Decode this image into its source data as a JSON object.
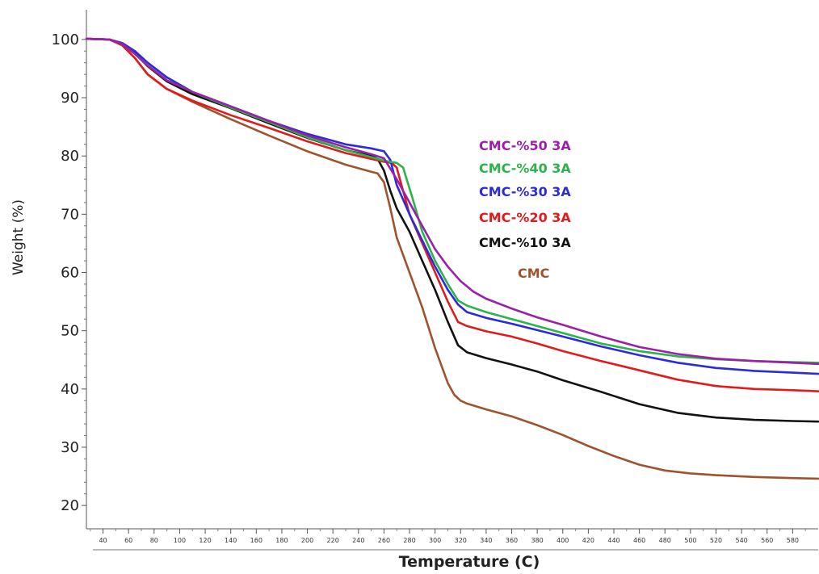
{
  "chart_data": {
    "type": "line",
    "xlabel": "Temperature (C)",
    "ylabel": "Weight (%)",
    "xlim": [
      27,
      600
    ],
    "ylim": [
      16,
      104
    ],
    "yticks": [
      20,
      30,
      40,
      50,
      60,
      70,
      80,
      90,
      100
    ],
    "xticks": [
      40,
      60,
      80,
      100,
      120,
      140,
      160,
      180,
      200,
      220,
      240,
      260,
      280,
      300,
      320,
      340,
      360,
      380,
      400,
      420,
      440,
      460,
      480,
      500,
      520,
      540,
      560,
      580
    ],
    "xtick_labels": [
      "40",
      "60",
      "80",
      "100",
      "120",
      "140",
      "160",
      "180",
      "200",
      "220",
      "240",
      "260",
      "280",
      "300",
      "320",
      "340",
      "360",
      "380",
      "400",
      "420",
      "440",
      "460",
      "480",
      "500",
      "520",
      "540",
      "560",
      "580"
    ],
    "grid": false,
    "legend_position": "center-right",
    "series": [
      {
        "name": "CMC-%50 3A",
        "color": "#9b1fa8",
        "x": [
          27,
          45,
          55,
          65,
          75,
          90,
          110,
          140,
          170,
          200,
          230,
          250,
          260,
          270,
          280,
          290,
          300,
          310,
          320,
          330,
          340,
          360,
          380,
          400,
          430,
          460,
          490,
          520,
          550,
          580,
          600
        ],
        "y": [
          100.1,
          100,
          99.2,
          97.5,
          95.5,
          93,
          91,
          88.5,
          86,
          83.5,
          81.5,
          80.3,
          79.6,
          76,
          72,
          68,
          64,
          61,
          58.5,
          56.7,
          55.5,
          53.8,
          52.3,
          51,
          49,
          47.2,
          46,
          45.2,
          44.8,
          44.5,
          44.3
        ]
      },
      {
        "name": "CMC-%40 3A",
        "color": "#2db34a",
        "x": [
          27,
          45,
          55,
          65,
          75,
          90,
          110,
          140,
          170,
          200,
          230,
          250,
          260,
          270,
          275,
          282,
          290,
          300,
          310,
          318,
          325,
          340,
          360,
          380,
          400,
          430,
          460,
          490,
          520,
          550,
          580,
          600
        ],
        "y": [
          100.1,
          100,
          99.2,
          97.5,
          95.5,
          93,
          91,
          88.3,
          85.8,
          83.2,
          81,
          79.8,
          79.2,
          78.8,
          78,
          73,
          67,
          62,
          58,
          55.2,
          54.3,
          53.2,
          52,
          50.8,
          49.6,
          47.8,
          46.5,
          45.6,
          45.1,
          44.8,
          44.6,
          44.5
        ]
      },
      {
        "name": "CMC-%30 3A",
        "color": "#2b2bd8",
        "x": [
          27,
          45,
          55,
          65,
          75,
          90,
          110,
          140,
          170,
          200,
          230,
          250,
          260,
          265,
          270,
          280,
          290,
          300,
          310,
          318,
          325,
          340,
          360,
          380,
          400,
          430,
          460,
          490,
          520,
          550,
          580,
          600
        ],
        "y": [
          100.1,
          100,
          99.4,
          98,
          96,
          93.5,
          91,
          88.5,
          86,
          83.8,
          82,
          81.3,
          80.8,
          79.3,
          75,
          70,
          65.5,
          61,
          57,
          54.5,
          53.2,
          52.2,
          51.2,
          50.1,
          49,
          47.3,
          45.8,
          44.5,
          43.6,
          43.1,
          42.8,
          42.6
        ]
      },
      {
        "name": "CMC-%20 3A",
        "color": "#e01b1b",
        "x": [
          27,
          45,
          55,
          65,
          75,
          90,
          110,
          140,
          170,
          200,
          230,
          250,
          260,
          266,
          270,
          275,
          280,
          290,
          300,
          310,
          318,
          325,
          340,
          360,
          380,
          400,
          430,
          460,
          490,
          520,
          550,
          580,
          600
        ],
        "y": [
          100.1,
          100,
          99,
          96.8,
          94,
          91.5,
          89.5,
          87,
          84.8,
          82.5,
          80.5,
          79.5,
          79,
          78.8,
          78,
          74,
          70,
          65,
          60,
          55,
          51.5,
          50.8,
          49.9,
          49,
          47.8,
          46.5,
          44.8,
          43.2,
          41.6,
          40.5,
          40,
          39.8,
          39.6
        ]
      },
      {
        "name": "CMC-%10 3A",
        "color": "#111111",
        "x": [
          27,
          45,
          55,
          65,
          75,
          90,
          110,
          140,
          170,
          200,
          230,
          250,
          255,
          260,
          265,
          270,
          280,
          290,
          300,
          310,
          318,
          325,
          340,
          360,
          380,
          400,
          430,
          460,
          490,
          520,
          550,
          580,
          600
        ],
        "y": [
          100.1,
          100,
          99.2,
          97.6,
          95.4,
          92.8,
          90.6,
          88.2,
          85.6,
          83.1,
          81,
          80,
          79.5,
          77.5,
          74,
          71,
          67,
          62,
          57,
          51.5,
          47.5,
          46.3,
          45.3,
          44.2,
          43,
          41.5,
          39.5,
          37.4,
          35.9,
          35.1,
          34.7,
          34.5,
          34.4
        ]
      },
      {
        "name": "CMC",
        "color": "#a0522d",
        "x": [
          27,
          45,
          55,
          65,
          75,
          90,
          110,
          140,
          170,
          200,
          230,
          250,
          255,
          260,
          265,
          270,
          280,
          290,
          300,
          310,
          315,
          320,
          325,
          340,
          360,
          380,
          400,
          420,
          440,
          460,
          480,
          500,
          520,
          550,
          580,
          600
        ],
        "y": [
          100.1,
          100,
          99,
          96.8,
          94,
          91.5,
          89.3,
          86.3,
          83.5,
          80.8,
          78.5,
          77.3,
          77,
          75.5,
          71,
          66,
          60,
          54,
          47,
          41,
          39,
          38,
          37.5,
          36.5,
          35.3,
          33.8,
          32.1,
          30.2,
          28.5,
          27,
          26,
          25.5,
          25.2,
          24.9,
          24.7,
          24.6
        ]
      }
    ]
  }
}
